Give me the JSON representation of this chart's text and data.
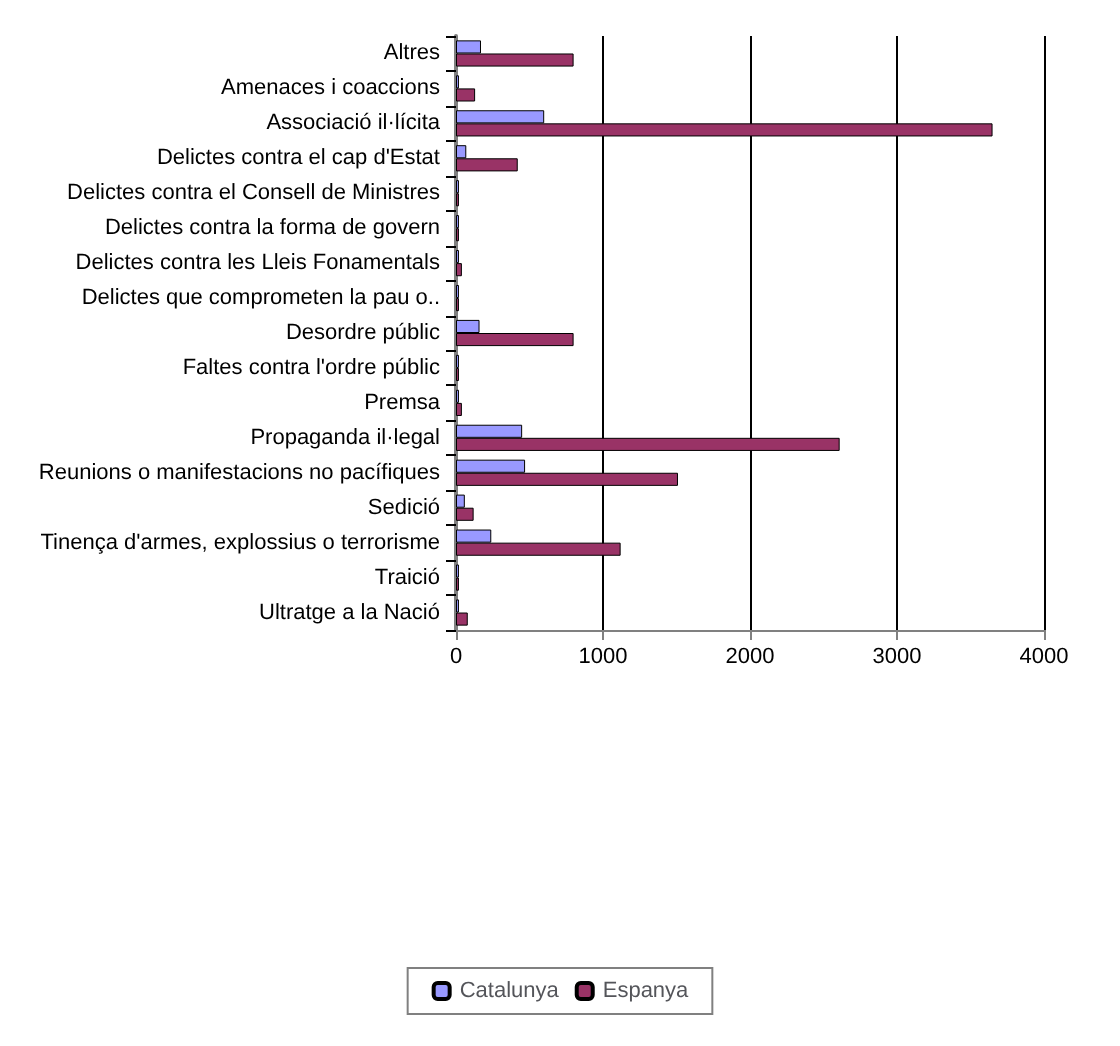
{
  "chart_data": {
    "type": "bar",
    "orientation": "horizontal",
    "categories": [
      "Altres",
      "Amenaces i coaccions",
      "Associació il·lícita",
      "Delictes contra el cap d'Estat",
      "Delictes contra el Consell de Ministres",
      "Delictes contra la forma de govern",
      "Delictes contra les Lleis Fonamentals",
      "Delictes que comprometen la pau o..",
      "Desordre públic",
      "Faltes contra l'ordre públic",
      "Premsa",
      "Propaganda il·legal",
      "Reunions o manifestacions no pacífiques",
      "Sedició",
      "Tinença d'armes, explossius o terrorisme",
      "Traició",
      "Ultratge a la Nació"
    ],
    "series": [
      {
        "name": "Catalunya",
        "color": "#9999ff",
        "values": [
          170,
          20,
          600,
          70,
          20,
          20,
          20,
          20,
          160,
          20,
          20,
          450,
          470,
          60,
          240,
          20,
          20
        ]
      },
      {
        "name": "Espanya",
        "color": "#993366",
        "values": [
          800,
          130,
          3650,
          420,
          20,
          20,
          40,
          20,
          800,
          20,
          40,
          2610,
          1510,
          120,
          1120,
          20,
          80
        ]
      }
    ],
    "xlim": [
      0,
      4000
    ],
    "xticks": [
      0,
      1000,
      2000,
      3000,
      4000
    ],
    "grid": "x",
    "legend": "bottom"
  }
}
